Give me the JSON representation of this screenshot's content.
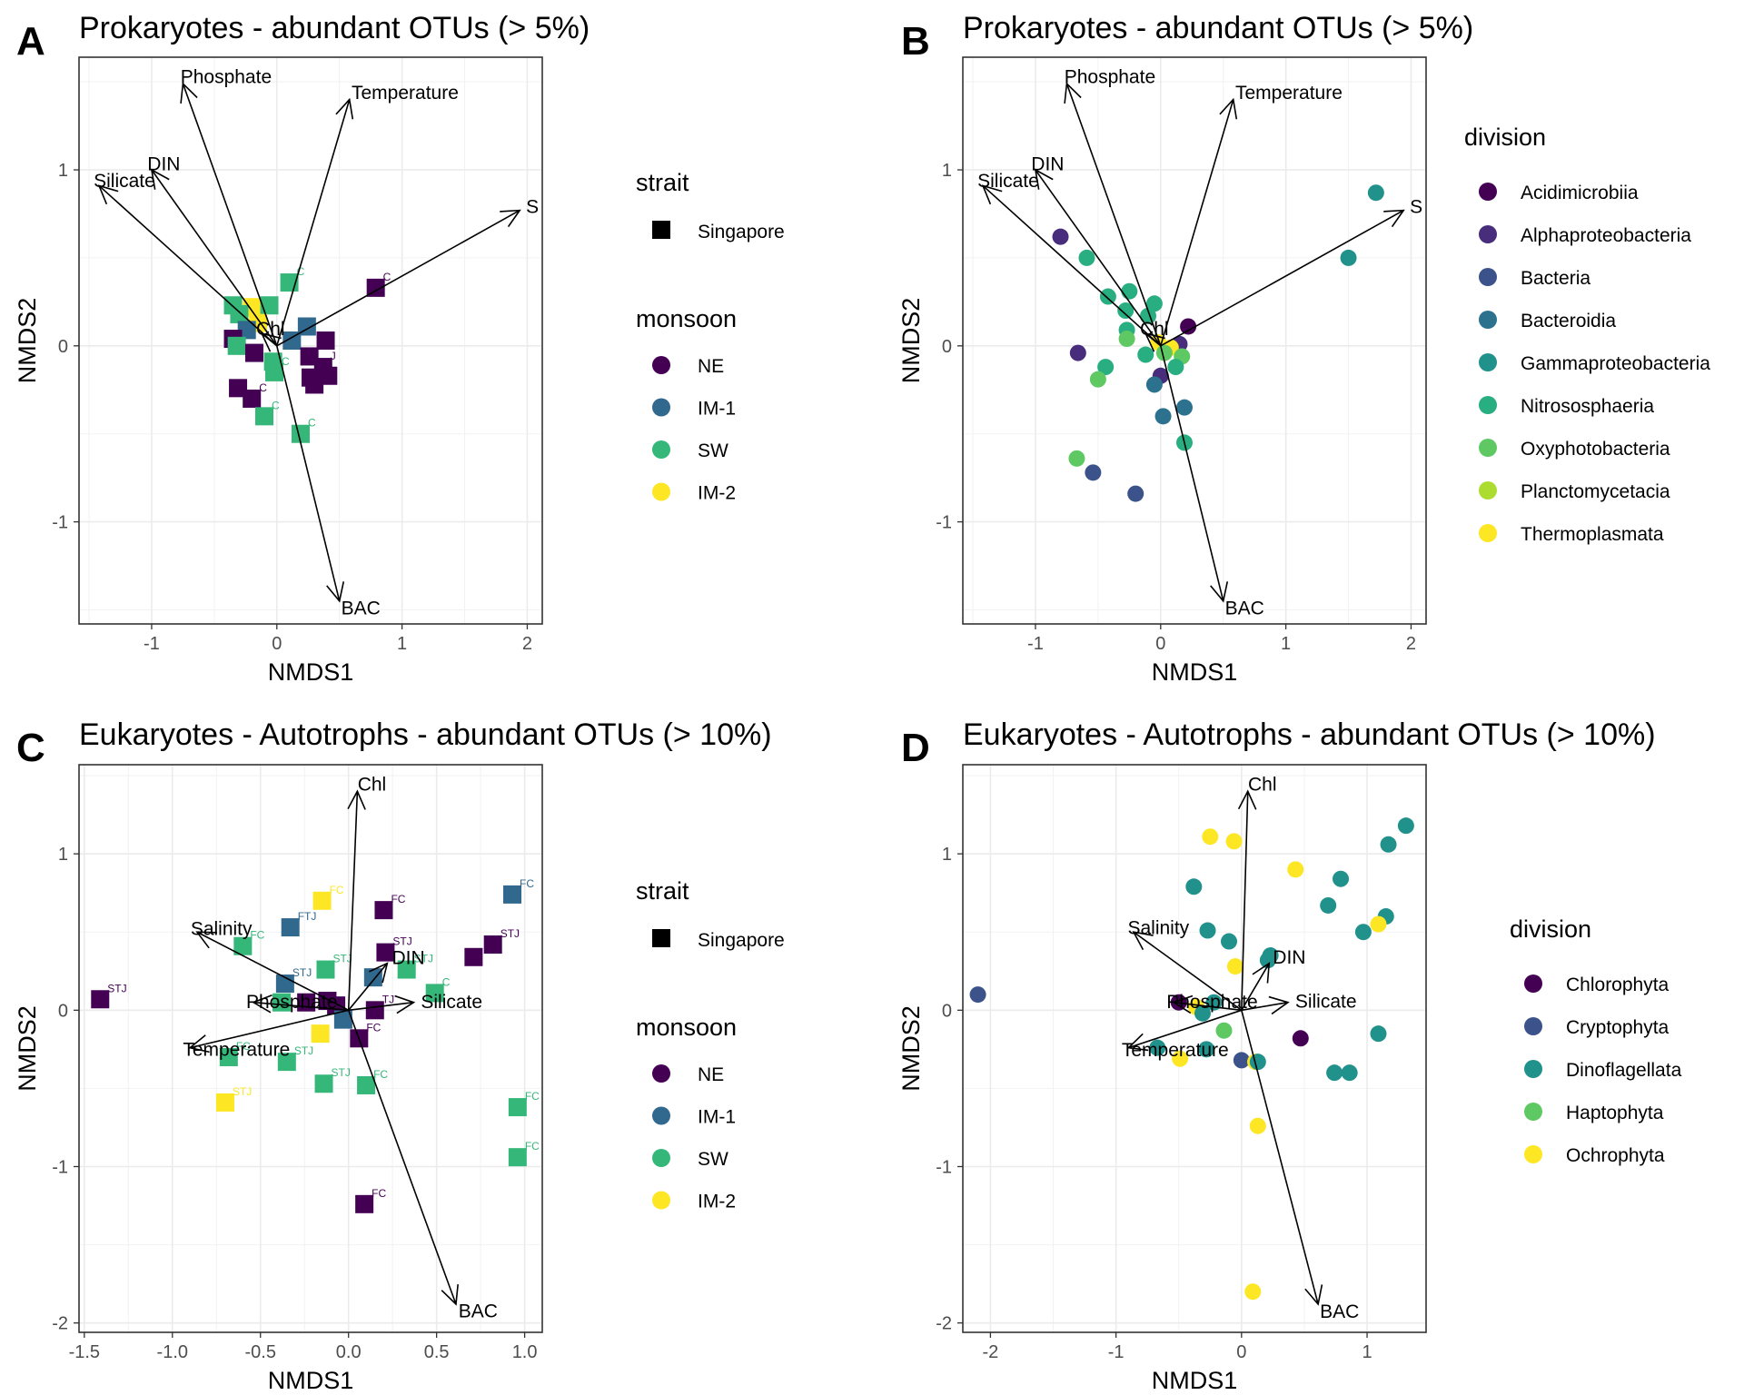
{
  "chart_data": [
    {
      "panel": "A",
      "type": "scatter",
      "title": "Prokaryotes - abundant OTUs (> 5%)",
      "xlabel": "NMDS1",
      "ylabel": "NMDS2",
      "xlim": [
        -1.58,
        2.12
      ],
      "ylim": [
        -1.58,
        1.64
      ],
      "xticks": [
        -1,
        0,
        1,
        2
      ],
      "yticks": [
        -1,
        0,
        1
      ],
      "grid": true,
      "marker": "square",
      "legend_position": "right",
      "legend": {
        "strait_title": "strait",
        "strait_items": [
          "Singapore"
        ],
        "monsoon_title": "monsoon",
        "monsoon_items": [
          "NE",
          "IM-1",
          "SW",
          "IM-2"
        ]
      },
      "colors": {
        "NE": "#440154",
        "IM-1": "#31688e",
        "SW": "#35b779",
        "IM-2": "#fde725"
      },
      "vectors": [
        {
          "label": "Phosphate",
          "x": -0.75,
          "y": 1.49
        },
        {
          "label": "Temperature",
          "x": 0.58,
          "y": 1.4
        },
        {
          "label": "DIN",
          "x": -1.0,
          "y": 1.0
        },
        {
          "label": "Silicate",
          "x": -1.42,
          "y": 0.91
        },
        {
          "label": "S",
          "x": 1.94,
          "y": 0.77
        },
        {
          "label": "BAC",
          "x": 0.5,
          "y": -1.45
        },
        {
          "label": "Chl",
          "x": -0.12,
          "y": 0.07
        }
      ],
      "points": [
        {
          "x": 0.79,
          "y": 0.33,
          "group": "NE",
          "label": "C"
        },
        {
          "x": 0.1,
          "y": 0.36,
          "group": "SW",
          "label": "C"
        },
        {
          "x": -0.35,
          "y": 0.23,
          "group": "SW",
          "label": ""
        },
        {
          "x": -0.2,
          "y": 0.22,
          "group": "IM-2",
          "label": ""
        },
        {
          "x": -0.06,
          "y": 0.23,
          "group": "SW",
          "label": ""
        },
        {
          "x": -0.3,
          "y": 0.18,
          "group": "SW",
          "label": ""
        },
        {
          "x": -0.15,
          "y": 0.13,
          "group": "IM-2",
          "label": ""
        },
        {
          "x": -0.24,
          "y": 0.09,
          "group": "IM-1",
          "label": ""
        },
        {
          "x": 0.24,
          "y": 0.11,
          "group": "IM-1",
          "label": ""
        },
        {
          "x": -0.35,
          "y": 0.04,
          "group": "NE",
          "label": ""
        },
        {
          "x": 0.39,
          "y": 0.03,
          "group": "NE",
          "label": ""
        },
        {
          "x": 0.12,
          "y": 0.03,
          "group": "IM-1",
          "label": ""
        },
        {
          "x": -0.32,
          "y": 0.0,
          "group": "SW",
          "label": ""
        },
        {
          "x": -0.18,
          "y": -0.04,
          "group": "NE",
          "label": ""
        },
        {
          "x": 0.26,
          "y": -0.06,
          "group": "NE",
          "label": ""
        },
        {
          "x": -0.03,
          "y": -0.09,
          "group": "SW",
          "label": ""
        },
        {
          "x": 0.37,
          "y": -0.12,
          "group": "NE",
          "label": "J"
        },
        {
          "x": -0.02,
          "y": -0.15,
          "group": "SW",
          "label": "C"
        },
        {
          "x": 0.27,
          "y": -0.18,
          "group": "NE",
          "label": ""
        },
        {
          "x": 0.41,
          "y": -0.17,
          "group": "NE",
          "label": ""
        },
        {
          "x": 0.3,
          "y": -0.22,
          "group": "NE",
          "label": ""
        },
        {
          "x": -0.31,
          "y": -0.24,
          "group": "NE",
          "label": ""
        },
        {
          "x": -0.2,
          "y": -0.3,
          "group": "NE",
          "label": "C"
        },
        {
          "x": -0.1,
          "y": -0.4,
          "group": "SW",
          "label": "C"
        },
        {
          "x": 0.19,
          "y": -0.5,
          "group": "SW",
          "label": "C"
        }
      ]
    },
    {
      "panel": "B",
      "type": "scatter",
      "title": "Prokaryotes - abundant OTUs (> 5%)",
      "xlabel": "NMDS1",
      "ylabel": "NMDS2",
      "xlim": [
        -1.58,
        2.12
      ],
      "ylim": [
        -1.58,
        1.64
      ],
      "xticks": [
        -1,
        0,
        1,
        2
      ],
      "yticks": [
        -1,
        0,
        1
      ],
      "grid": true,
      "marker": "circle",
      "legend_position": "right",
      "legend": {
        "division_title": "division",
        "division_items": [
          "Acidimicrobiia",
          "Alphaproteobacteria",
          "Bacteria",
          "Bacteroidia",
          "Gammaproteobacteria",
          "Nitrososphaeria",
          "Oxyphotobacteria",
          "Planctomycetacia",
          "Thermoplasmata"
        ]
      },
      "colors": {
        "Acidimicrobiia": "#440154",
        "Alphaproteobacteria": "#472d7b",
        "Bacteria": "#3b528b",
        "Bacteroidia": "#2c728e",
        "Gammaproteobacteria": "#21918c",
        "Nitrososphaeria": "#28ae80",
        "Oxyphotobacteria": "#5ec962",
        "Planctomycetacia": "#addc30",
        "Thermoplasmata": "#fde725"
      },
      "vectors": [
        {
          "label": "Phosphate",
          "x": -0.75,
          "y": 1.49
        },
        {
          "label": "Temperature",
          "x": 0.58,
          "y": 1.4
        },
        {
          "label": "DIN",
          "x": -1.0,
          "y": 1.0
        },
        {
          "label": "Silicate",
          "x": -1.42,
          "y": 0.91
        },
        {
          "label": "S",
          "x": 1.94,
          "y": 0.77
        },
        {
          "label": "BAC",
          "x": 0.5,
          "y": -1.45
        },
        {
          "label": "Chl",
          "x": -0.12,
          "y": 0.07
        }
      ],
      "points": [
        {
          "x": 1.72,
          "y": 0.87,
          "group": "Gammaproteobacteria"
        },
        {
          "x": 1.5,
          "y": 0.5,
          "group": "Gammaproteobacteria"
        },
        {
          "x": -0.8,
          "y": 0.62,
          "group": "Alphaproteobacteria"
        },
        {
          "x": -0.59,
          "y": 0.5,
          "group": "Nitrososphaeria"
        },
        {
          "x": -0.25,
          "y": 0.31,
          "group": "Nitrososphaeria"
        },
        {
          "x": -0.42,
          "y": 0.28,
          "group": "Nitrososphaeria"
        },
        {
          "x": -0.05,
          "y": 0.24,
          "group": "Nitrososphaeria"
        },
        {
          "x": -0.28,
          "y": 0.2,
          "group": "Nitrososphaeria"
        },
        {
          "x": -0.1,
          "y": 0.17,
          "group": "Nitrososphaeria"
        },
        {
          "x": 0.22,
          "y": 0.11,
          "group": "Acidimicrobiia"
        },
        {
          "x": -0.27,
          "y": 0.09,
          "group": "Nitrososphaeria"
        },
        {
          "x": -0.27,
          "y": 0.04,
          "group": "Oxyphotobacteria"
        },
        {
          "x": -0.02,
          "y": 0.02,
          "group": "Thermoplasmata"
        },
        {
          "x": 0.15,
          "y": 0.01,
          "group": "Alphaproteobacteria"
        },
        {
          "x": 0.08,
          "y": -0.01,
          "group": "Thermoplasmata"
        },
        {
          "x": -0.12,
          "y": -0.05,
          "group": "Nitrososphaeria"
        },
        {
          "x": 0.03,
          "y": -0.04,
          "group": "Oxyphotobacteria"
        },
        {
          "x": -0.66,
          "y": -0.04,
          "group": "Alphaproteobacteria"
        },
        {
          "x": 0.17,
          "y": -0.06,
          "group": "Oxyphotobacteria"
        },
        {
          "x": 0.12,
          "y": -0.12,
          "group": "Nitrososphaeria"
        },
        {
          "x": -0.44,
          "y": -0.12,
          "group": "Nitrososphaeria"
        },
        {
          "x": -0.5,
          "y": -0.19,
          "group": "Oxyphotobacteria"
        },
        {
          "x": 0.0,
          "y": -0.17,
          "group": "Alphaproteobacteria"
        },
        {
          "x": -0.05,
          "y": -0.22,
          "group": "Bacteroidia"
        },
        {
          "x": 0.19,
          "y": -0.35,
          "group": "Bacteroidia"
        },
        {
          "x": 0.02,
          "y": -0.4,
          "group": "Bacteroidia"
        },
        {
          "x": 0.19,
          "y": -0.55,
          "group": "Nitrososphaeria"
        },
        {
          "x": -0.67,
          "y": -0.64,
          "group": "Oxyphotobacteria"
        },
        {
          "x": -0.54,
          "y": -0.72,
          "group": "Bacteria"
        },
        {
          "x": -0.2,
          "y": -0.84,
          "group": "Bacteria"
        }
      ]
    },
    {
      "panel": "C",
      "type": "scatter",
      "title": "Eukaryotes - Autotrophs - abundant OTUs (> 10%)",
      "xlabel": "NMDS1",
      "ylabel": "NMDS2",
      "xlim": [
        -1.53,
        1.1
      ],
      "ylim": [
        -2.06,
        1.57
      ],
      "xticks": [
        -1.5,
        -1.0,
        -0.5,
        0.0,
        0.5,
        1.0
      ],
      "yticks": [
        -2,
        -1,
        0,
        1
      ],
      "grid": true,
      "marker": "square",
      "legend_position": "right",
      "legend": {
        "strait_title": "strait",
        "strait_items": [
          "Singapore"
        ],
        "monsoon_title": "monsoon",
        "monsoon_items": [
          "NE",
          "IM-1",
          "SW",
          "IM-2"
        ]
      },
      "colors": {
        "NE": "#440154",
        "IM-1": "#31688e",
        "SW": "#35b779",
        "IM-2": "#fde725"
      },
      "vectors": [
        {
          "label": "Chl",
          "x": 0.05,
          "y": 1.4
        },
        {
          "label": "Salinity",
          "x": -0.86,
          "y": 0.5
        },
        {
          "label": "DIN",
          "x": 0.22,
          "y": 0.3
        },
        {
          "label": "Phosphate",
          "x": -0.54,
          "y": 0.05
        },
        {
          "label": "Silicate",
          "x": 0.37,
          "y": 0.05
        },
        {
          "label": "Temperature",
          "x": -0.9,
          "y": -0.24
        },
        {
          "label": "BAC",
          "x": 0.61,
          "y": -1.88
        }
      ],
      "points": [
        {
          "x": 0.93,
          "y": 0.74,
          "group": "IM-1",
          "label": "FC"
        },
        {
          "x": -0.15,
          "y": 0.7,
          "group": "IM-2",
          "label": "FC"
        },
        {
          "x": 0.2,
          "y": 0.64,
          "group": "NE",
          "label": "FC"
        },
        {
          "x": -0.33,
          "y": 0.53,
          "group": "IM-1",
          "label": "FTJ"
        },
        {
          "x": 0.82,
          "y": 0.42,
          "group": "NE",
          "label": "STJ"
        },
        {
          "x": -0.6,
          "y": 0.41,
          "group": "SW",
          "label": "FC"
        },
        {
          "x": 0.71,
          "y": 0.34,
          "group": "NE",
          "label": ""
        },
        {
          "x": 0.21,
          "y": 0.37,
          "group": "NE",
          "label": "STJ"
        },
        {
          "x": -0.13,
          "y": 0.26,
          "group": "SW",
          "label": "STJ"
        },
        {
          "x": 0.33,
          "y": 0.26,
          "group": "SW",
          "label": "STJ"
        },
        {
          "x": -0.36,
          "y": 0.17,
          "group": "IM-1",
          "label": "STJ"
        },
        {
          "x": 0.14,
          "y": 0.21,
          "group": "IM-1",
          "label": ""
        },
        {
          "x": 0.49,
          "y": 0.11,
          "group": "SW",
          "label": "C"
        },
        {
          "x": -0.38,
          "y": 0.05,
          "group": "SW",
          "label": ""
        },
        {
          "x": -0.24,
          "y": 0.05,
          "group": "NE",
          "label": ""
        },
        {
          "x": -0.12,
          "y": 0.06,
          "group": "NE",
          "label": ""
        },
        {
          "x": -0.07,
          "y": 0.03,
          "group": "NE",
          "label": ""
        },
        {
          "x": 0.15,
          "y": 0.0,
          "group": "NE",
          "label": "TJ"
        },
        {
          "x": -1.41,
          "y": 0.07,
          "group": "NE",
          "label": "STJ"
        },
        {
          "x": -0.03,
          "y": -0.06,
          "group": "IM-1",
          "label": ""
        },
        {
          "x": -0.16,
          "y": -0.15,
          "group": "IM-2",
          "label": ""
        },
        {
          "x": 0.06,
          "y": -0.18,
          "group": "NE",
          "label": "FC"
        },
        {
          "x": -0.68,
          "y": -0.3,
          "group": "SW",
          "label": "FC"
        },
        {
          "x": -0.35,
          "y": -0.33,
          "group": "SW",
          "label": "STJ"
        },
        {
          "x": -0.14,
          "y": -0.47,
          "group": "SW",
          "label": "STJ"
        },
        {
          "x": 0.1,
          "y": -0.48,
          "group": "SW",
          "label": "FC"
        },
        {
          "x": -0.7,
          "y": -0.59,
          "group": "IM-2",
          "label": "STJ"
        },
        {
          "x": 0.96,
          "y": -0.62,
          "group": "SW",
          "label": "FC"
        },
        {
          "x": 0.96,
          "y": -0.94,
          "group": "SW",
          "label": "FC"
        },
        {
          "x": 0.09,
          "y": -1.24,
          "group": "NE",
          "label": "FC"
        }
      ]
    },
    {
      "panel": "D",
      "type": "scatter",
      "title": "Eukaryotes - Autotrophs - abundant OTUs (> 10%)",
      "xlabel": "NMDS1",
      "ylabel": "NMDS2",
      "xlim": [
        -2.22,
        1.47
      ],
      "ylim": [
        -2.06,
        1.57
      ],
      "xticks": [
        -2,
        -1,
        0,
        1
      ],
      "yticks": [
        -2,
        -1,
        0,
        1
      ],
      "grid": true,
      "marker": "circle",
      "legend_position": "right",
      "legend": {
        "division_title": "division",
        "division_items": [
          "Chlorophyta",
          "Cryptophyta",
          "Dinoflagellata",
          "Haptophyta",
          "Ochrophyta"
        ]
      },
      "colors": {
        "Chlorophyta": "#440154",
        "Cryptophyta": "#3b528b",
        "Dinoflagellata": "#21918c",
        "Haptophyta": "#5ec962",
        "Ochrophyta": "#fde725"
      },
      "vectors": [
        {
          "label": "Chl",
          "x": 0.05,
          "y": 1.4
        },
        {
          "label": "Salinity",
          "x": -0.86,
          "y": 0.5
        },
        {
          "label": "DIN",
          "x": 0.22,
          "y": 0.3
        },
        {
          "label": "Phosphate",
          "x": -0.54,
          "y": 0.05
        },
        {
          "label": "Silicate",
          "x": 0.37,
          "y": 0.05
        },
        {
          "label": "Temperature",
          "x": -0.9,
          "y": -0.24
        },
        {
          "label": "BAC",
          "x": 0.61,
          "y": -1.88
        }
      ],
      "points": [
        {
          "x": 1.31,
          "y": 1.18,
          "group": "Dinoflagellata"
        },
        {
          "x": -0.25,
          "y": 1.11,
          "group": "Ochrophyta"
        },
        {
          "x": -0.06,
          "y": 1.08,
          "group": "Ochrophyta"
        },
        {
          "x": 1.17,
          "y": 1.06,
          "group": "Dinoflagellata"
        },
        {
          "x": 0.43,
          "y": 0.9,
          "group": "Ochrophyta"
        },
        {
          "x": 0.79,
          "y": 0.84,
          "group": "Dinoflagellata"
        },
        {
          "x": -0.38,
          "y": 0.79,
          "group": "Dinoflagellata"
        },
        {
          "x": 0.69,
          "y": 0.67,
          "group": "Dinoflagellata"
        },
        {
          "x": 1.15,
          "y": 0.6,
          "group": "Dinoflagellata"
        },
        {
          "x": 1.09,
          "y": 0.55,
          "group": "Ochrophyta"
        },
        {
          "x": 0.97,
          "y": 0.5,
          "group": "Dinoflagellata"
        },
        {
          "x": -0.27,
          "y": 0.51,
          "group": "Dinoflagellata"
        },
        {
          "x": -0.1,
          "y": 0.44,
          "group": "Dinoflagellata"
        },
        {
          "x": 0.23,
          "y": 0.35,
          "group": "Dinoflagellata"
        },
        {
          "x": 0.21,
          "y": 0.32,
          "group": "Dinoflagellata"
        },
        {
          "x": -0.05,
          "y": 0.28,
          "group": "Ochrophyta"
        },
        {
          "x": -2.1,
          "y": 0.1,
          "group": "Cryptophyta"
        },
        {
          "x": -0.5,
          "y": 0.05,
          "group": "Chlorophyta"
        },
        {
          "x": -0.22,
          "y": 0.05,
          "group": "Dinoflagellata"
        },
        {
          "x": -0.36,
          "y": 0.02,
          "group": "Ochrophyta"
        },
        {
          "x": -0.31,
          "y": -0.02,
          "group": "Dinoflagellata"
        },
        {
          "x": -0.14,
          "y": -0.13,
          "group": "Haptophyta"
        },
        {
          "x": 0.47,
          "y": -0.18,
          "group": "Chlorophyta"
        },
        {
          "x": 1.09,
          "y": -0.15,
          "group": "Dinoflagellata"
        },
        {
          "x": -0.67,
          "y": -0.24,
          "group": "Dinoflagellata"
        },
        {
          "x": -0.28,
          "y": -0.25,
          "group": "Dinoflagellata"
        },
        {
          "x": -0.49,
          "y": -0.31,
          "group": "Ochrophyta"
        },
        {
          "x": 0.0,
          "y": -0.32,
          "group": "Cryptophyta"
        },
        {
          "x": 0.11,
          "y": -0.33,
          "group": "Ochrophyta"
        },
        {
          "x": 0.13,
          "y": -0.33,
          "group": "Dinoflagellata"
        },
        {
          "x": 0.74,
          "y": -0.4,
          "group": "Dinoflagellata"
        },
        {
          "x": 0.86,
          "y": -0.4,
          "group": "Dinoflagellata"
        },
        {
          "x": 0.13,
          "y": -0.74,
          "group": "Ochrophyta"
        },
        {
          "x": 0.09,
          "y": -1.8,
          "group": "Ochrophyta"
        }
      ]
    }
  ]
}
